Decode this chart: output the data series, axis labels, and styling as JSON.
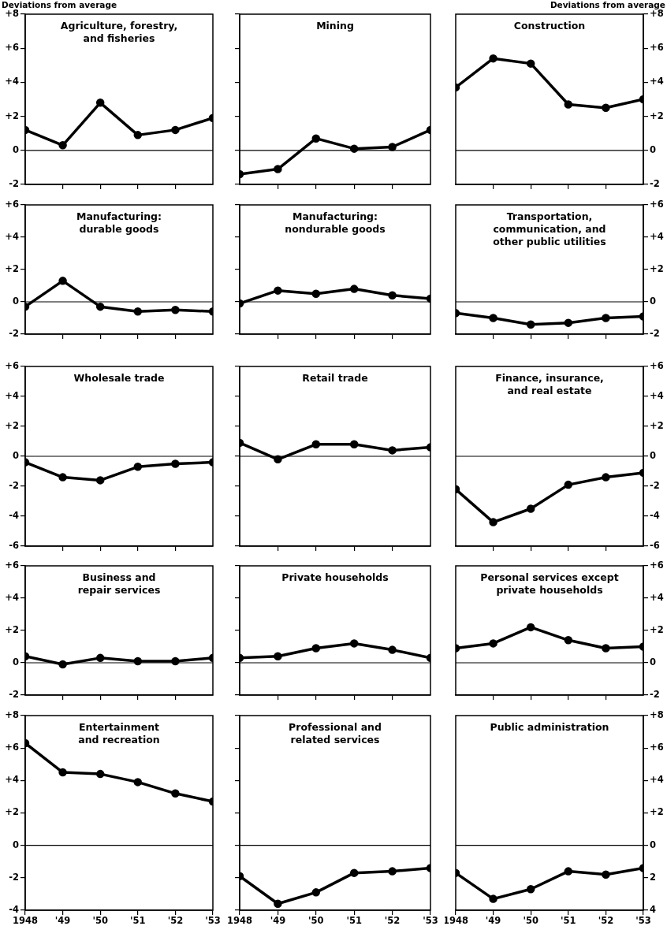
{
  "chart_data": [
    {
      "type": "line",
      "title": "Agriculture, forestry,\nand fisheries",
      "ylabel": "Deviations from average",
      "x": [
        1948,
        1949,
        1950,
        1951,
        1952,
        1953
      ],
      "xlim": [
        1948,
        1953
      ],
      "xticks": [
        1949,
        1950,
        1951,
        1952
      ],
      "ylim": [
        -2,
        8
      ],
      "yticks": [
        -2,
        0,
        {
          "value": 2,
          "label": "+2"
        },
        {
          "value": 4,
          "label": "+4"
        },
        {
          "value": 6,
          "label": "+6"
        },
        {
          "value": 8,
          "label": "+8"
        }
      ],
      "tick_labels": "y",
      "marker": "circle",
      "ref_lines": [
        {
          "axis": "y",
          "value": 0
        }
      ],
      "series": [
        {
          "color": "#000000",
          "values": [
            1.2,
            0.3,
            2.8,
            0.9,
            1.2,
            1.9
          ]
        }
      ]
    },
    {
      "type": "line",
      "title": "Mining",
      "x": [
        1948,
        1949,
        1950,
        1951,
        1952,
        1953
      ],
      "xlim": [
        1948,
        1953
      ],
      "xticks": [
        1949,
        1950,
        1951,
        1952
      ],
      "ylim": [
        -2,
        8
      ],
      "yticks": [
        -2,
        0,
        2,
        4,
        6,
        8
      ],
      "tick_labels": false,
      "marker": "circle",
      "ref_lines": [
        {
          "axis": "y",
          "value": 0
        }
      ],
      "series": [
        {
          "color": "#000000",
          "values": [
            -1.4,
            -1.1,
            0.7,
            0.1,
            0.2,
            1.2
          ]
        }
      ]
    },
    {
      "type": "line",
      "title": "Construction",
      "ylabel": "Deviations from average",
      "x": [
        1948,
        1949,
        1950,
        1951,
        1952,
        1953
      ],
      "xlim": [
        1948,
        1953
      ],
      "xticks": [
        1949,
        1950,
        1951,
        1952
      ],
      "ylim": [
        -2,
        8
      ],
      "yticks": [
        -2,
        0,
        {
          "value": 2,
          "label": "+2"
        },
        {
          "value": 4,
          "label": "+4"
        },
        {
          "value": 6,
          "label": "+6"
        },
        {
          "value": 8,
          "label": "+8"
        }
      ],
      "tick_labels": "y",
      "marker": "circle",
      "ref_lines": [
        {
          "axis": "y",
          "value": 0
        }
      ],
      "series": [
        {
          "color": "#000000",
          "values": [
            3.7,
            5.4,
            5.1,
            2.7,
            2.5,
            3.0
          ]
        }
      ]
    },
    {
      "type": "line",
      "title": "Manufacturing:\ndurable goods",
      "x": [
        1948,
        1949,
        1950,
        1951,
        1952,
        1953
      ],
      "xlim": [
        1948,
        1953
      ],
      "xticks": [
        1949,
        1950,
        1951,
        1952
      ],
      "ylim": [
        -2,
        6
      ],
      "yticks": [
        -2,
        0,
        {
          "value": 2,
          "label": "+2"
        },
        {
          "value": 4,
          "label": "+4"
        },
        {
          "value": 6,
          "label": "+6"
        }
      ],
      "tick_labels": "y",
      "marker": "circle",
      "ref_lines": [
        {
          "axis": "y",
          "value": 0
        }
      ],
      "series": [
        {
          "color": "#000000",
          "values": [
            -0.3,
            1.3,
            -0.3,
            -0.6,
            -0.5,
            -0.6
          ]
        }
      ]
    },
    {
      "type": "line",
      "title": "Manufacturing:\nnondurable goods",
      "x": [
        1948,
        1949,
        1950,
        1951,
        1952,
        1953
      ],
      "xlim": [
        1948,
        1953
      ],
      "xticks": [
        1949,
        1950,
        1951,
        1952
      ],
      "ylim": [
        -2,
        6
      ],
      "yticks": [
        -2,
        0,
        2,
        4,
        6
      ],
      "tick_labels": false,
      "marker": "circle",
      "ref_lines": [
        {
          "axis": "y",
          "value": 0
        }
      ],
      "series": [
        {
          "color": "#000000",
          "values": [
            -0.1,
            0.7,
            0.5,
            0.8,
            0.4,
            0.2
          ]
        }
      ]
    },
    {
      "type": "line",
      "title": "Transportation,\ncommunication, and\nother public utilities",
      "x": [
        1948,
        1949,
        1950,
        1951,
        1952,
        1953
      ],
      "xlim": [
        1948,
        1953
      ],
      "xticks": [
        1949,
        1950,
        1951,
        1952
      ],
      "ylim": [
        -2,
        6
      ],
      "yticks": [
        -2,
        0,
        {
          "value": 2,
          "label": "+2"
        },
        {
          "value": 4,
          "label": "+4"
        },
        {
          "value": 6,
          "label": "+6"
        }
      ],
      "tick_labels": "y",
      "marker": "circle",
      "ref_lines": [
        {
          "axis": "y",
          "value": 0
        }
      ],
      "series": [
        {
          "color": "#000000",
          "values": [
            -0.7,
            -1.0,
            -1.4,
            -1.3,
            -1.0,
            -0.9
          ]
        }
      ]
    },
    {
      "type": "line",
      "title": "Wholesale trade",
      "x": [
        1948,
        1949,
        1950,
        1951,
        1952,
        1953
      ],
      "xlim": [
        1948,
        1953
      ],
      "xticks": [
        1949,
        1950,
        1951,
        1952
      ],
      "ylim": [
        -6,
        6
      ],
      "yticks": [
        -6,
        -4,
        -2,
        0,
        {
          "value": 2,
          "label": "+2"
        },
        {
          "value": 4,
          "label": "+4"
        },
        {
          "value": 6,
          "label": "+6"
        }
      ],
      "tick_labels": "y",
      "marker": "circle",
      "ref_lines": [
        {
          "axis": "y",
          "value": 0
        }
      ],
      "series": [
        {
          "color": "#000000",
          "values": [
            -0.4,
            -1.4,
            -1.6,
            -0.7,
            -0.5,
            -0.4
          ]
        }
      ]
    },
    {
      "type": "line",
      "title": "Retail trade",
      "x": [
        1948,
        1949,
        1950,
        1951,
        1952,
        1953
      ],
      "xlim": [
        1948,
        1953
      ],
      "xticks": [
        1949,
        1950,
        1951,
        1952
      ],
      "ylim": [
        -6,
        6
      ],
      "yticks": [
        -6,
        -4,
        -2,
        0,
        2,
        4,
        6
      ],
      "tick_labels": false,
      "marker": "circle",
      "ref_lines": [
        {
          "axis": "y",
          "value": 0
        }
      ],
      "series": [
        {
          "color": "#000000",
          "values": [
            0.9,
            -0.2,
            0.8,
            0.8,
            0.4,
            0.6
          ]
        }
      ]
    },
    {
      "type": "line",
      "title": "Finance, insurance,\nand real estate",
      "x": [
        1948,
        1949,
        1950,
        1951,
        1952,
        1953
      ],
      "xlim": [
        1948,
        1953
      ],
      "xticks": [
        1949,
        1950,
        1951,
        1952
      ],
      "ylim": [
        -6,
        6
      ],
      "yticks": [
        -6,
        -4,
        -2,
        0,
        {
          "value": 2,
          "label": "+2"
        },
        {
          "value": 4,
          "label": "+4"
        },
        {
          "value": 6,
          "label": "+6"
        }
      ],
      "tick_labels": "y",
      "marker": "circle",
      "ref_lines": [
        {
          "axis": "y",
          "value": 0
        }
      ],
      "series": [
        {
          "color": "#000000",
          "values": [
            -2.2,
            -4.4,
            -3.5,
            -1.9,
            -1.4,
            -1.1
          ]
        }
      ]
    },
    {
      "type": "line",
      "title": "Business and\nrepair services",
      "x": [
        1948,
        1949,
        1950,
        1951,
        1952,
        1953
      ],
      "xlim": [
        1948,
        1953
      ],
      "xticks": [
        1949,
        1950,
        1951,
        1952
      ],
      "ylim": [
        -2,
        6
      ],
      "yticks": [
        -2,
        0,
        {
          "value": 2,
          "label": "+2"
        },
        {
          "value": 4,
          "label": "+4"
        },
        {
          "value": 6,
          "label": "+6"
        }
      ],
      "tick_labels": "y",
      "marker": "circle",
      "ref_lines": [
        {
          "axis": "y",
          "value": 0
        }
      ],
      "series": [
        {
          "color": "#000000",
          "values": [
            0.4,
            -0.1,
            0.3,
            0.1,
            0.1,
            0.3
          ]
        }
      ]
    },
    {
      "type": "line",
      "title": "Private households",
      "x": [
        1948,
        1949,
        1950,
        1951,
        1952,
        1953
      ],
      "xlim": [
        1948,
        1953
      ],
      "xticks": [
        1949,
        1950,
        1951,
        1952
      ],
      "ylim": [
        -2,
        6
      ],
      "yticks": [
        -2,
        0,
        2,
        4,
        6
      ],
      "tick_labels": false,
      "marker": "circle",
      "ref_lines": [
        {
          "axis": "y",
          "value": 0
        }
      ],
      "series": [
        {
          "color": "#000000",
          "values": [
            0.3,
            0.4,
            0.9,
            1.2,
            0.8,
            0.3
          ]
        }
      ]
    },
    {
      "type": "line",
      "title": "Personal services except\nprivate households",
      "x": [
        1948,
        1949,
        1950,
        1951,
        1952,
        1953
      ],
      "xlim": [
        1948,
        1953
      ],
      "xticks": [
        1949,
        1950,
        1951,
        1952
      ],
      "ylim": [
        -2,
        6
      ],
      "yticks": [
        -2,
        0,
        {
          "value": 2,
          "label": "+2"
        },
        {
          "value": 4,
          "label": "+4"
        },
        {
          "value": 6,
          "label": "+6"
        }
      ],
      "tick_labels": "y",
      "marker": "circle",
      "ref_lines": [
        {
          "axis": "y",
          "value": 0
        }
      ],
      "series": [
        {
          "color": "#000000",
          "values": [
            0.9,
            1.2,
            2.2,
            1.4,
            0.9,
            1.0
          ]
        }
      ]
    },
    {
      "type": "line",
      "title": "Entertainment\nand recreation",
      "x": [
        1948,
        1949,
        1950,
        1951,
        1952,
        1953
      ],
      "xlim": [
        1948,
        1953
      ],
      "xticks": [
        {
          "value": 1948,
          "label": "1948"
        },
        {
          "value": 1949,
          "label": "'49"
        },
        {
          "value": 1950,
          "label": "'50"
        },
        {
          "value": 1951,
          "label": "'51"
        },
        {
          "value": 1952,
          "label": "'52"
        },
        {
          "value": 1953,
          "label": "'53"
        }
      ],
      "ylim": [
        -4,
        8
      ],
      "yticks": [
        -4,
        -2,
        0,
        {
          "value": 2,
          "label": "+2"
        },
        {
          "value": 4,
          "label": "+4"
        },
        {
          "value": 6,
          "label": "+6"
        },
        {
          "value": 8,
          "label": "+8"
        }
      ],
      "marker": "circle",
      "ref_lines": [
        {
          "axis": "y",
          "value": 0
        }
      ],
      "series": [
        {
          "color": "#000000",
          "values": [
            6.3,
            4.5,
            4.4,
            3.9,
            3.2,
            2.7
          ]
        }
      ]
    },
    {
      "type": "line",
      "title": "Professional and\nrelated services",
      "x": [
        1948,
        1949,
        1950,
        1951,
        1952,
        1953
      ],
      "xlim": [
        1948,
        1953
      ],
      "xticks": [
        {
          "value": 1948,
          "label": "1948"
        },
        {
          "value": 1949,
          "label": "'49"
        },
        {
          "value": 1950,
          "label": "'50"
        },
        {
          "value": 1951,
          "label": "'51"
        },
        {
          "value": 1952,
          "label": "'52"
        },
        {
          "value": 1953,
          "label": "'53"
        }
      ],
      "ylim": [
        -4,
        8
      ],
      "yticks": [
        -4,
        -2,
        0,
        2,
        4,
        6,
        8
      ],
      "tick_labels": "x",
      "marker": "circle",
      "ref_lines": [
        {
          "axis": "y",
          "value": 0
        }
      ],
      "series": [
        {
          "color": "#000000",
          "values": [
            -1.9,
            -3.6,
            -2.9,
            -1.7,
            -1.6,
            -1.4
          ]
        }
      ]
    },
    {
      "type": "line",
      "title": "Public administration",
      "x": [
        1948,
        1949,
        1950,
        1951,
        1952,
        1953
      ],
      "xlim": [
        1948,
        1953
      ],
      "xticks": [
        {
          "value": 1948,
          "label": "1948"
        },
        {
          "value": 1949,
          "label": "'49"
        },
        {
          "value": 1950,
          "label": "'50"
        },
        {
          "value": 1951,
          "label": "'51"
        },
        {
          "value": 1952,
          "label": "'52"
        },
        {
          "value": 1953,
          "label": "'53"
        }
      ],
      "ylim": [
        -4,
        8
      ],
      "yticks": [
        {
          "value": -4,
          "label": "4"
        },
        {
          "value": -2,
          "label": "2"
        },
        0,
        {
          "value": 2,
          "label": "+2"
        },
        {
          "value": 4,
          "label": "+4"
        },
        {
          "value": 6,
          "label": "+6"
        },
        {
          "value": 8,
          "label": "+8"
        }
      ],
      "marker": "circle",
      "ref_lines": [
        {
          "axis": "y",
          "value": 0
        }
      ],
      "series": [
        {
          "color": "#000000",
          "values": [
            -1.7,
            -3.3,
            -2.7,
            -1.6,
            -1.8,
            -1.4
          ]
        }
      ]
    }
  ]
}
